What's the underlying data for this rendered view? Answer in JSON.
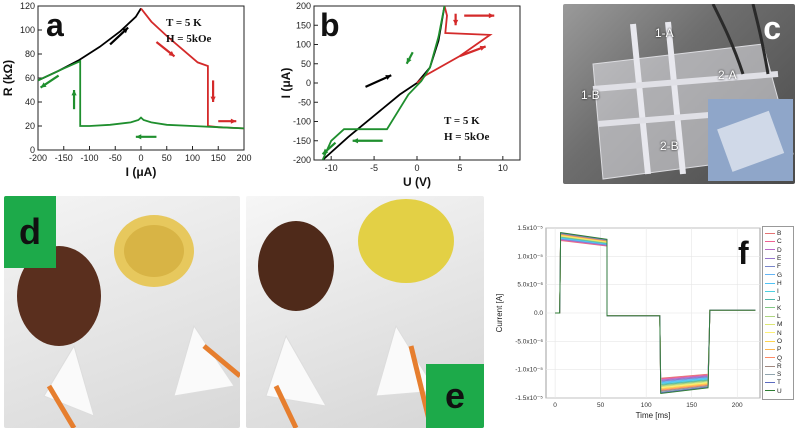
{
  "chart_data": [
    {
      "id": "a",
      "type": "line",
      "panel_label": "a",
      "xlabel": "I (μA)",
      "ylabel": "R (kΩ)",
      "xlim": [
        -200,
        200
      ],
      "ylim": [
        0,
        120
      ],
      "xticks": [
        -200,
        -150,
        -100,
        -50,
        0,
        50,
        100,
        150,
        200
      ],
      "yticks": [
        0,
        20,
        40,
        60,
        80,
        100,
        120
      ],
      "annotations": [
        "T = 5 K",
        "H = 5kOe"
      ],
      "series": [
        {
          "color": "#000000",
          "x": [
            -200,
            -160,
            -120,
            -80,
            -40,
            -10,
            0
          ],
          "y": [
            58,
            66,
            75,
            86,
            99,
            111,
            118
          ]
        },
        {
          "color": "#d42a2a",
          "x": [
            0,
            20,
            50,
            80,
            110,
            130,
            130,
            150,
            200
          ],
          "y": [
            118,
            107,
            95,
            84,
            73,
            70,
            20,
            19,
            18
          ]
        },
        {
          "color": "#1f8f2e",
          "x": [
            200,
            150,
            100,
            50,
            20,
            5,
            0,
            -5,
            -20,
            -60,
            -100,
            -118,
            -118,
            -150,
            -200
          ],
          "y": [
            18,
            19,
            20,
            21,
            23,
            25,
            27,
            25,
            23,
            21,
            20,
            20,
            74,
            68,
            58
          ]
        }
      ]
    },
    {
      "id": "b",
      "type": "line",
      "panel_label": "b",
      "xlabel": "U (V)",
      "ylabel": "I (μA)",
      "xlim": [
        -12,
        12
      ],
      "ylim": [
        -200,
        200
      ],
      "xticks": [
        -10,
        -5,
        0,
        5,
        10
      ],
      "yticks": [
        -200,
        -150,
        -100,
        -50,
        0,
        50,
        100,
        150,
        200
      ],
      "annotations": [
        "T = 5 K",
        "H = 5kOe"
      ],
      "series": [
        {
          "color": "#000000",
          "x": [
            -11,
            -8,
            -5,
            -2,
            0,
            1.5,
            2.5,
            3.2
          ],
          "y": [
            -200,
            -140,
            -85,
            -30,
            0,
            40,
            110,
            200
          ]
        },
        {
          "color": "#d42a2a",
          "x": [
            3.2,
            3.5,
            3.3,
            8.5,
            5,
            1,
            0
          ],
          "y": [
            200,
            175,
            130,
            125,
            70,
            20,
            0
          ]
        },
        {
          "color": "#1f8f2e",
          "x": [
            3.2,
            2.5,
            1.5,
            0.5,
            -1,
            -3.5,
            -8.5,
            -10,
            -11
          ],
          "y": [
            200,
            120,
            40,
            5,
            -30,
            -120,
            -120,
            -150,
            -200
          ]
        }
      ]
    },
    {
      "id": "f",
      "type": "line",
      "panel_label": "f",
      "xlabel": "Time [ms]",
      "ylabel": "Current [A]",
      "xlim": [
        -10,
        225
      ],
      "ylim": [
        -1.5e-05,
        1.5e-05
      ],
      "xticks": [
        0,
        50,
        100,
        150,
        200
      ],
      "yticks": [
        -1.5e-05,
        -1e-05,
        -5e-06,
        0,
        5e-06,
        1e-05,
        1.5e-05
      ],
      "ytick_labels": [
        "-1.5x10⁻⁵",
        "-1.0x10⁻⁵",
        "-5.0x10⁻⁶",
        "0.0",
        "5.0x10⁻⁶",
        "1.0x10⁻⁵",
        "1.5x10⁻⁵"
      ],
      "legend": [
        "B",
        "C",
        "D",
        "E",
        "F",
        "G",
        "H",
        "I",
        "J",
        "K",
        "L",
        "M",
        "N",
        "O",
        "P",
        "Q",
        "R",
        "S",
        "T",
        "U"
      ],
      "legend_colors": [
        "#e57373",
        "#f06292",
        "#ba68c8",
        "#9575cd",
        "#7986cb",
        "#64b5f6",
        "#4fc3f7",
        "#4dd0e1",
        "#4db6ac",
        "#81c784",
        "#aed581",
        "#dce775",
        "#fff176",
        "#ffd54f",
        "#ffb74d",
        "#ff8a65",
        "#a1887f",
        "#90a4ae",
        "#5c6bc0",
        "#2e7d32"
      ],
      "pulse": {
        "t_on": [
          5,
          57
        ],
        "t_mid": [
          57,
          115
        ],
        "t_neg": [
          115,
          168
        ],
        "t_end": 220,
        "pos_peak_range": [
          1.28e-05,
          1.42e-05
        ],
        "pos_end_range": [
          1.18e-05,
          1.3e-05
        ],
        "mid_level": -5e-07,
        "neg_peak_range": [
          -1.15e-05,
          -1.42e-05
        ],
        "neg_end_range": [
          -1.08e-05,
          -1.32e-05
        ],
        "tail_level": 5e-07
      }
    }
  ],
  "panel_c": {
    "label": "c",
    "callouts": [
      "1-A",
      "2-A",
      "1-B",
      "2-B"
    ]
  },
  "panel_d": {
    "label": "d"
  },
  "panel_e": {
    "label": "e"
  }
}
